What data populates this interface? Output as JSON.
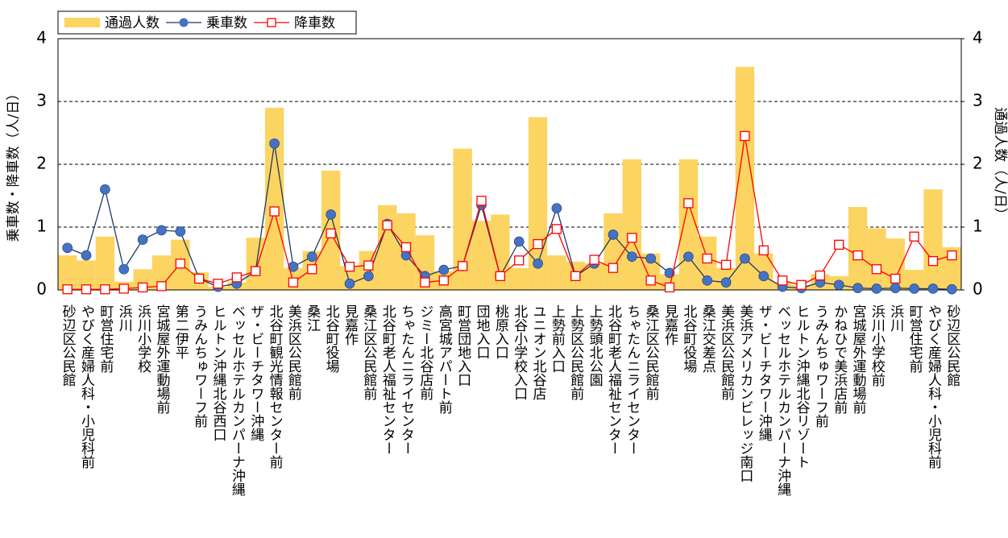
{
  "chart_data": {
    "type": "combo",
    "y_label": "乗車数・降車数（人/日）",
    "y2_label": "通過人数（人/日）",
    "categories": [
      "砂辺区公民館",
      "やびく産婦人科・小児科前",
      "町営住宅前",
      "浜川",
      "浜川小学校",
      "宮城屋外運動場前",
      "第二伊平",
      "うみんちゅワーフ前",
      "ヒルトン沖縄北谷西口",
      "ベッセルホテルカンパーナ沖縄",
      "ザ・ビーチタワー沖縄",
      "北谷町観光情報センター前",
      "美浜区公民館前",
      "桑江",
      "北谷町役場",
      "見嘉作",
      "桑江区公民館前",
      "北谷町老人福祉センター",
      "ちゃたんニライセンター",
      "ジミー北谷店前",
      "高宮城アパート前",
      "町営団地入口",
      "団地入口",
      "桃原入口",
      "北谷小学校入口",
      "ユニオン北谷店",
      "上勢前入口",
      "上勢区公民館前",
      "上勢頭北公園",
      "北谷町老人福祉センター",
      "ちゃたんニライセンター",
      "桑江区公民館前",
      "見嘉作",
      "北谷町役場",
      "桑江交差点",
      "美浜区公民館前",
      "美浜アメリカンビレッジ南口",
      "ザ・ビーチタワー沖縄",
      "ベッセルホテルカンパーナ沖縄",
      "ヒルトン沖縄北谷リゾート",
      "うみんちゅワーフ前",
      "かねひで美浜店前",
      "宮城屋外運動場前",
      "浜川小学校前",
      "浜川",
      "町営住宅前",
      "やびく産婦人科・小児科前",
      "砂辺区公民館"
    ],
    "series": [
      {
        "name": "通過人数",
        "type": "bar",
        "axis": "y2",
        "color": "#fcd462",
        "values": [
          0.55,
          0.47,
          0.85,
          0.13,
          0.33,
          0.55,
          0.8,
          0.28,
          0.05,
          0.12,
          0.83,
          2.9,
          0.35,
          0.62,
          1.9,
          0.38,
          0.62,
          1.35,
          1.22,
          0.87,
          0.3,
          2.25,
          1.1,
          1.2,
          0.35,
          2.75,
          0.55,
          0.45,
          0.42,
          1.22,
          2.08,
          0.58,
          0.25,
          2.08,
          0.85,
          0.35,
          3.55,
          0.58,
          0.12,
          0.08,
          0.25,
          0.22,
          1.32,
          0.98,
          0.82,
          0.32,
          1.6,
          0.68
        ]
      },
      {
        "name": "乗車数",
        "type": "line",
        "marker": "circle",
        "color": "#4472c4",
        "line_color": "#1f3864",
        "values": [
          0.67,
          0.55,
          1.6,
          0.33,
          0.8,
          0.95,
          0.93,
          0.18,
          0.05,
          0.1,
          0.3,
          2.33,
          0.37,
          0.53,
          1.2,
          0.1,
          0.22,
          1.05,
          0.55,
          0.22,
          0.32,
          0.38,
          1.35,
          0.22,
          0.77,
          0.42,
          1.3,
          0.22,
          0.42,
          0.88,
          0.53,
          0.5,
          0.27,
          0.53,
          0.15,
          0.12,
          0.5,
          0.22,
          0.05,
          0.03,
          0.12,
          0.08,
          0.03,
          0.02,
          0.03,
          0.02,
          0.02,
          0.01
        ]
      },
      {
        "name": "降車数",
        "type": "line",
        "marker": "square",
        "color": "#ff0000",
        "line_color": "#ff0000",
        "values": [
          0.01,
          0.01,
          0.01,
          0.02,
          0.04,
          0.06,
          0.42,
          0.18,
          0.1,
          0.2,
          0.3,
          1.25,
          0.12,
          0.33,
          0.9,
          0.37,
          0.39,
          1.03,
          0.68,
          0.12,
          0.15,
          0.38,
          1.42,
          0.22,
          0.47,
          0.73,
          0.97,
          0.22,
          0.48,
          0.35,
          0.83,
          0.15,
          0.04,
          1.38,
          0.5,
          0.4,
          2.45,
          0.63,
          0.15,
          0.08,
          0.23,
          0.72,
          0.55,
          0.33,
          0.18,
          0.85,
          0.46,
          0.55
        ]
      }
    ],
    "ylim": [
      0,
      4
    ],
    "yticks": [
      0,
      1,
      2,
      3,
      4
    ],
    "y2lim": [
      0,
      4
    ],
    "y2ticks": [
      0,
      1,
      2,
      3,
      4
    ],
    "grid": true,
    "legend": "top-left"
  }
}
